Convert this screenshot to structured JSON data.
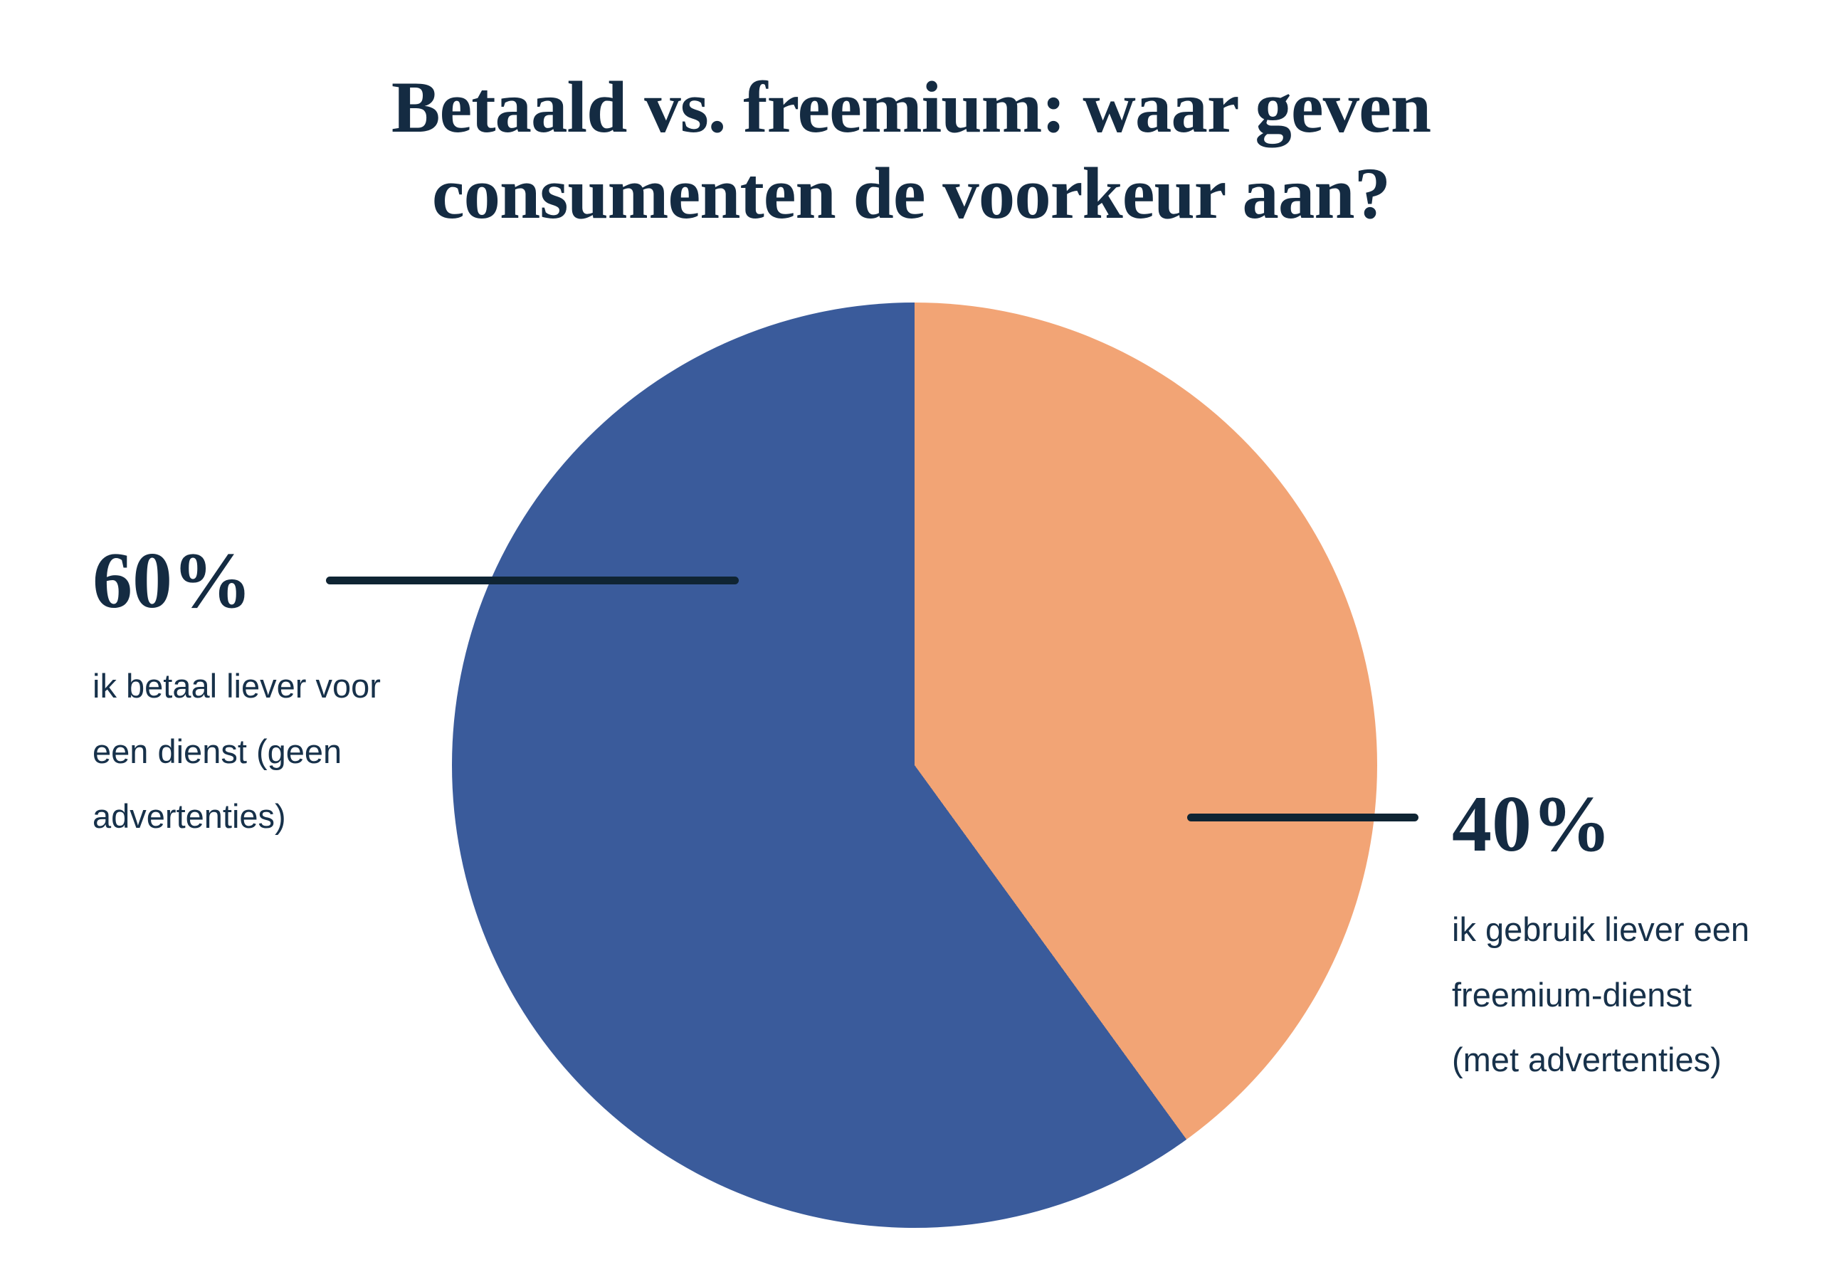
{
  "title": {
    "line1": "Betaald vs. freemium: waar geven",
    "line2": "consumenten de voorkeur aan?"
  },
  "chart_data": {
    "type": "pie",
    "title": "Betaald vs. freemium: waar geven consumenten de voorkeur aan?",
    "units": "%",
    "start_angle_deg": 0,
    "direction": "clockwise",
    "grid": false,
    "legend_position": "callout-labels",
    "slices": [
      {
        "label": "ik gebruik liever een freemium-dienst (met advertenties)",
        "value": 40,
        "color": "#F2A475"
      },
      {
        "label": "ik betaal liever voor een dienst (geen advertenties)",
        "value": 60,
        "color": "#3A5B9B"
      }
    ]
  },
  "callouts": {
    "left": {
      "percent": "60%",
      "line1": "ik betaal liever voor",
      "line2": "een dienst (geen",
      "line3": "advertenties)"
    },
    "right": {
      "percent": "40%",
      "line1": "ik gebruik liever een",
      "line2": "freemium-dienst",
      "line3": "(met advertenties)"
    }
  },
  "colors": {
    "background": "#FFFFFF",
    "title_text": "#142B42",
    "percent_text": "#142B42",
    "body_text": "#17314A",
    "leader_line": "#0F2433",
    "pie_blue": "#3A5B9B",
    "pie_orange": "#F2A475"
  }
}
